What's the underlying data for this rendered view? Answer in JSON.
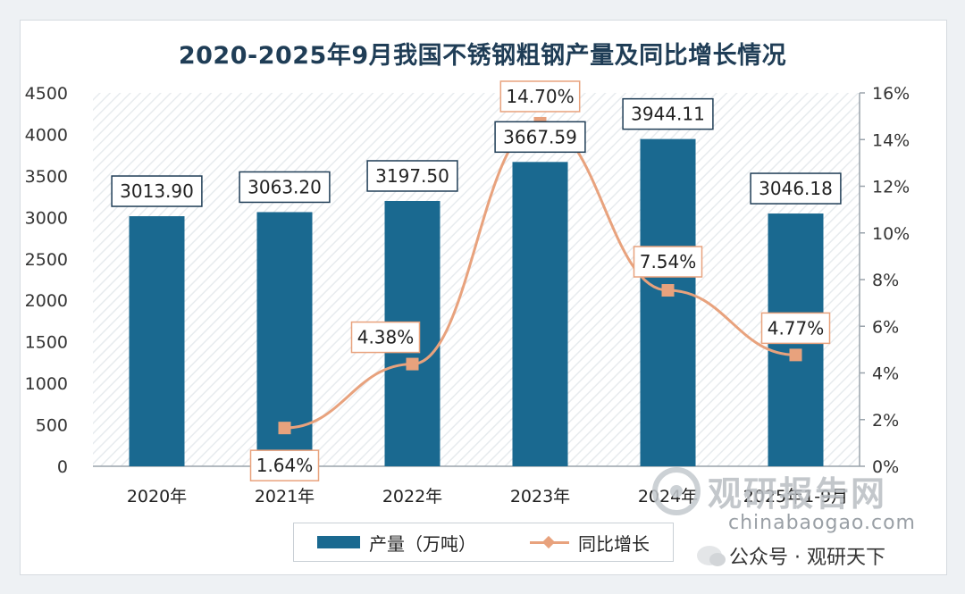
{
  "chart_data": {
    "type": "bar",
    "title": "2020-2025年9月我国不锈钢粗钢产量及同比增长情况",
    "categories": [
      "2020年",
      "2021年",
      "2022年",
      "2023年",
      "2024年",
      "2025年1-9月"
    ],
    "series": [
      {
        "name": "产量（万吨）",
        "type": "bar",
        "axis": "left",
        "values": [
          3013.9,
          3063.2,
          3197.5,
          3667.59,
          3944.11,
          3046.18
        ],
        "labels": [
          "3013.90",
          "3063.20",
          "3197.50",
          "3667.59",
          "3944.11",
          "3046.18"
        ],
        "color": "#1a6990"
      },
      {
        "name": "同比增长",
        "type": "line",
        "axis": "right",
        "values": [
          null,
          1.64,
          4.38,
          14.7,
          7.54,
          4.77
        ],
        "labels": [
          "",
          "1.64%",
          "4.38%",
          "14.70%",
          "7.54%",
          "4.77%"
        ],
        "color": "#e8a27d"
      }
    ],
    "y_left": {
      "min": 0,
      "max": 4500,
      "ticks": [
        "0",
        "500",
        "1000",
        "1500",
        "2000",
        "2500",
        "3000",
        "3500",
        "4000",
        "4500"
      ]
    },
    "y_right": {
      "min": 0,
      "max": 16,
      "ticks": [
        "0%",
        "2%",
        "4%",
        "6%",
        "8%",
        "10%",
        "12%",
        "14%",
        "16%"
      ]
    },
    "legend_position": "bottom"
  },
  "legend": {
    "bar_label": "产量（万吨）",
    "line_label": "同比增长"
  },
  "watermark": {
    "brand": "观研报告网",
    "url": "chinabaogao.com",
    "wechat": "公众号 · 观研天下"
  },
  "colors": {
    "bar": "#1a6990",
    "line": "#e8a27d",
    "label_border_bar": "#1f3d56",
    "label_border_line": "#e8a27d"
  }
}
